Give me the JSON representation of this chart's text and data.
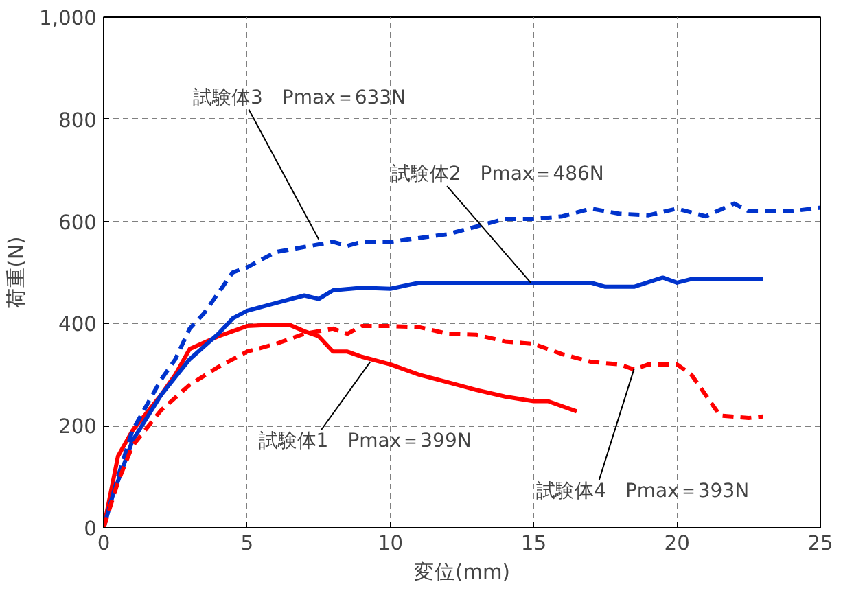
{
  "chart_data": {
    "type": "line",
    "xlabel": "変位(mm)",
    "ylabel": "荷重(N)",
    "xlim": [
      0,
      25
    ],
    "ylim": [
      0,
      1000
    ],
    "xticks": [
      0,
      5,
      10,
      15,
      20,
      25
    ],
    "yticks": [
      0,
      200,
      400,
      600,
      800,
      {
        "value": 1000,
        "label": "1,000"
      }
    ],
    "grid": true,
    "series": [
      {
        "color": "#ff0000",
        "line_style": "solid",
        "x": [
          0,
          0.5,
          1,
          2,
          2.5,
          3,
          4,
          5,
          6,
          6.5,
          7,
          7.5,
          8,
          8.5,
          9,
          10,
          11,
          12,
          13,
          14,
          15,
          15.5,
          16.5
        ],
        "values": [
          0,
          140,
          190,
          260,
          300,
          350,
          375,
          395,
          398,
          397,
          385,
          375,
          345,
          345,
          335,
          320,
          300,
          285,
          270,
          257,
          248,
          248,
          228
        ]
      },
      {
        "color": "#0033cc",
        "line_style": "solid",
        "x": [
          0,
          0.3,
          1,
          2,
          3,
          4,
          4.5,
          5,
          6,
          7,
          7.5,
          8,
          9,
          10,
          11,
          15,
          17,
          17.5,
          18.5,
          19.5,
          20,
          20.5,
          23
        ],
        "values": [
          0,
          60,
          170,
          260,
          330,
          380,
          410,
          425,
          440,
          455,
          448,
          465,
          470,
          468,
          480,
          480,
          480,
          472,
          472,
          490,
          480,
          487,
          487
        ]
      },
      {
        "color": "#0033cc",
        "line_style": "dashed",
        "x": [
          0,
          0.5,
          1,
          1.5,
          2,
          2.5,
          3,
          3.5,
          4,
          4.5,
          5,
          6,
          7,
          8,
          8.5,
          9,
          10,
          12,
          13,
          14,
          15,
          16,
          17,
          18,
          19,
          20,
          21,
          22,
          22.5,
          24,
          25
        ],
        "values": [
          0,
          100,
          190,
          240,
          290,
          330,
          390,
          420,
          460,
          500,
          510,
          540,
          550,
          560,
          552,
          560,
          560,
          575,
          590,
          605,
          605,
          610,
          625,
          615,
          612,
          625,
          610,
          635,
          620,
          620,
          627
        ]
      },
      {
        "color": "#ff0000",
        "line_style": "dashed",
        "x": [
          0,
          0.5,
          1,
          2,
          3,
          4,
          5,
          6,
          7,
          8,
          8.5,
          9,
          10,
          11,
          12,
          13,
          14,
          15,
          16,
          17,
          18,
          18.5,
          19,
          20,
          20.5,
          21.5,
          22.5,
          23
        ],
        "values": [
          0,
          90,
          160,
          230,
          280,
          315,
          345,
          360,
          380,
          390,
          380,
          395,
          395,
          393,
          380,
          378,
          365,
          360,
          340,
          325,
          320,
          310,
          320,
          320,
          300,
          220,
          215,
          218
        ]
      }
    ],
    "annotations": [
      {
        "text": "試験体3　Pmax＝633N",
        "x": 7.5,
        "y": 565
      },
      {
        "text": "試験体2　Pmax＝486N",
        "x": 14.9,
        "y": 480
      },
      {
        "text": "試験体1　Pmax＝399N",
        "x": 9.3,
        "y": 325
      },
      {
        "text": "試験体4　Pmax＝393N",
        "x": 18.5,
        "y": 311
      }
    ]
  }
}
